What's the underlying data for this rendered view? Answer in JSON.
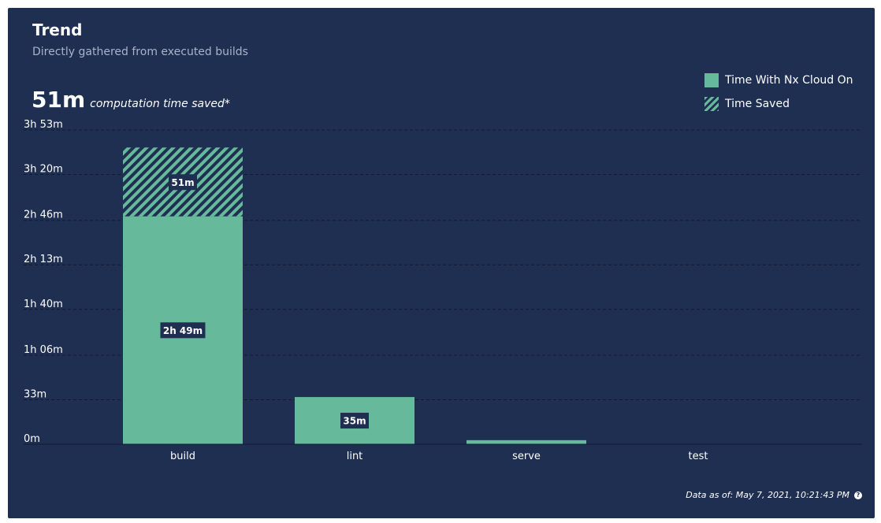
{
  "header": {
    "title": "Trend",
    "subtitle": "Directly gathered from executed builds"
  },
  "summary": {
    "value": "51m",
    "caption": "computation time saved*"
  },
  "legend": {
    "items": [
      {
        "label": "Time With Nx Cloud On"
      },
      {
        "label": "Time Saved"
      }
    ]
  },
  "footer": {
    "data_as_of": "Data as of: May 7, 2021, 10:21:43 PM"
  },
  "colors": {
    "background": "#1f2f52",
    "bar": "#66b99a",
    "label_box": "#1f2f52"
  },
  "chart_data": {
    "type": "bar",
    "stacked": true,
    "categories": [
      "build",
      "lint",
      "serve",
      "test"
    ],
    "unit": "minutes",
    "series": [
      {
        "name": "Time With Nx Cloud On",
        "values": [
          169,
          35,
          3,
          0
        ],
        "labels": [
          "2h 49m",
          "35m",
          "",
          ""
        ]
      },
      {
        "name": "Time Saved",
        "values": [
          51,
          0,
          0,
          0
        ],
        "labels": [
          "51m",
          "",
          "",
          ""
        ]
      }
    ],
    "y_ticks": [
      {
        "value": 0,
        "label": "0m"
      },
      {
        "value": 33,
        "label": "33m"
      },
      {
        "value": 66,
        "label": "1h 06m"
      },
      {
        "value": 100,
        "label": "1h 40m"
      },
      {
        "value": 133,
        "label": "2h 13m"
      },
      {
        "value": 166,
        "label": "2h 46m"
      },
      {
        "value": 200,
        "label": "3h 20m"
      },
      {
        "value": 233,
        "label": "3h 53m"
      }
    ],
    "ylim": [
      0,
      233
    ],
    "grid": true,
    "legend_position": "top-right"
  }
}
